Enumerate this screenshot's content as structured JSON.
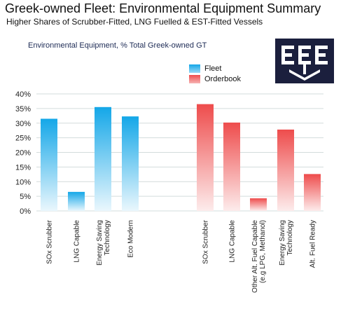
{
  "header": {
    "title": "Greek-owned Fleet: Environmental Equipment Summary",
    "subtitle": "Higher Shares of Scrubber-Fitted, LNG Fuelled & EST-Fitted Vessels"
  },
  "logo": {
    "icon": "eee-anchor-logo-icon",
    "bg_color": "#1b1f3d"
  },
  "colors": {
    "fleet_top": "#14a7e8",
    "fleet_bottom": "#eaf7fd",
    "orderbook_top": "#ee4c4c",
    "orderbook_bottom": "#fdecec",
    "grid": "#cfd8d8"
  },
  "chart_data": {
    "type": "bar",
    "title": "Environmental Equipment, % Total Greek-owned GT",
    "xlabel": "",
    "ylabel": "",
    "ylim": [
      0,
      40
    ],
    "yticks": [
      "0%",
      "5%",
      "10%",
      "15%",
      "20%",
      "25%",
      "30%",
      "35%",
      "40%"
    ],
    "grid": true,
    "legend": "top-right",
    "series": [
      {
        "name": "Fleet",
        "categories": [
          [
            "SOx Scrubber"
          ],
          [
            "LNG Capable"
          ],
          [
            "Energy Saving",
            "Technology"
          ],
          [
            "Eco Modern"
          ]
        ],
        "values": [
          31.5,
          6.5,
          35.5,
          32.3
        ]
      },
      {
        "name": "Orderbook",
        "categories": [
          [
            "SOx Scrubber"
          ],
          [
            "LNG Capable"
          ],
          [
            "Other Alt. Fuel Capable",
            "(e.g LPG, Methanol)"
          ],
          [
            "Energy Saving",
            "Technology"
          ],
          [
            "Alt. Fuel Ready"
          ]
        ],
        "values": [
          36.5,
          30.2,
          4.3,
          27.8,
          12.6
        ]
      }
    ]
  }
}
